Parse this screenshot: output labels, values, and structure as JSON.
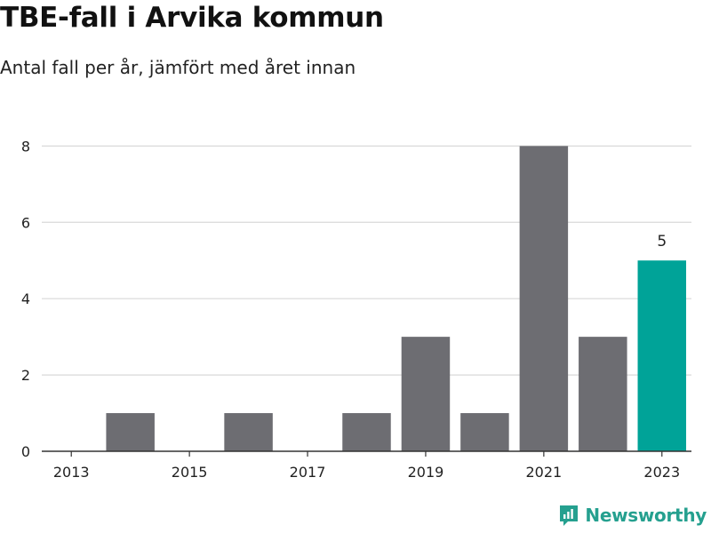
{
  "header": {
    "title": "TBE-fall i Arvika kommun",
    "subtitle": "Antal fall per år, jämfört med året innan"
  },
  "brand": {
    "name": "Newsworthy",
    "icon": "newsworthy-logo-icon",
    "color": "#25a08f"
  },
  "colors": {
    "bar": "#6d6d72",
    "highlight": "#00a398",
    "grid": "#d9d9d9",
    "axis": "#333333"
  },
  "chart_data": {
    "type": "bar",
    "title": "TBE-fall i Arvika kommun",
    "subtitle": "Antal fall per år, jämfört med året innan",
    "xlabel": "",
    "ylabel": "",
    "categories": [
      "2013",
      "2014",
      "2015",
      "2016",
      "2017",
      "2018",
      "2019",
      "2020",
      "2021",
      "2022",
      "2023"
    ],
    "values": [
      0,
      1,
      0,
      1,
      0,
      1,
      3,
      1,
      8,
      3,
      5
    ],
    "x_tick_labels": [
      "2013",
      "2015",
      "2017",
      "2019",
      "2021",
      "2023"
    ],
    "y_ticks": [
      0,
      2,
      4,
      6,
      8
    ],
    "ylim": [
      0,
      8.8
    ],
    "highlight_category": "2023",
    "data_labels": [
      {
        "category": "2023",
        "text": "5"
      }
    ],
    "grid": true,
    "legend": "none"
  }
}
